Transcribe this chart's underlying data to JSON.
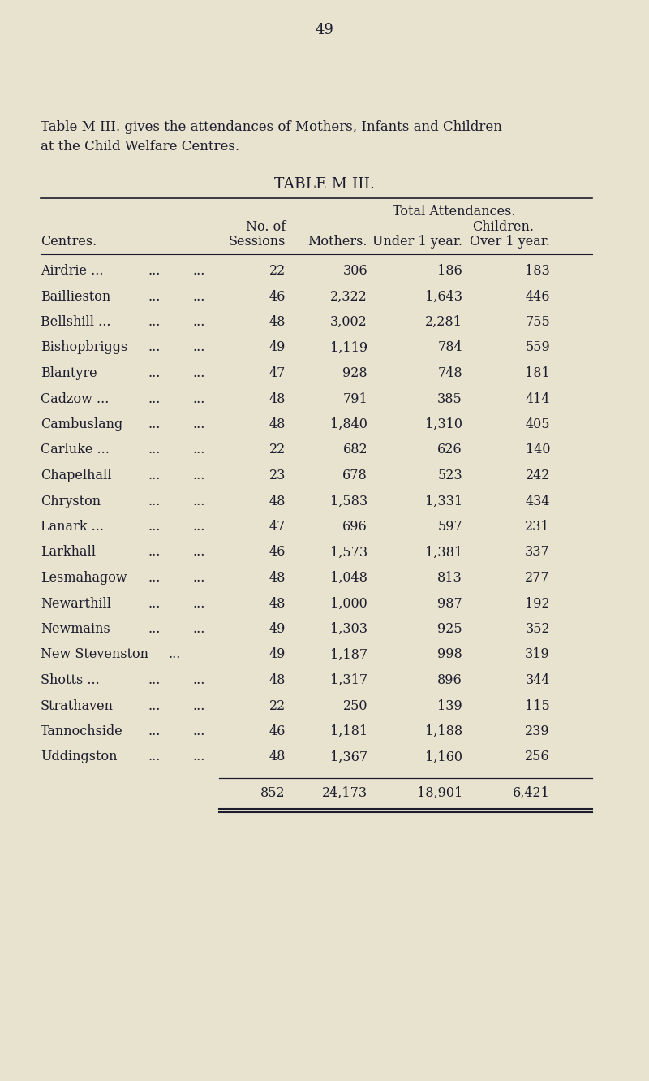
{
  "page_number": "49",
  "intro_text_line1": "Table M III. gives the attendances of Mothers, Infants and Children",
  "intro_text_line2": "at the Child Welfare Centres.",
  "table_title": "TABLE M III.",
  "bg_color": "#e8e3ce",
  "text_color": "#1c1c2e",
  "line_color": "#1c1c2e",
  "rows": [
    [
      "Airdrie ...",
      "...",
      "...",
      "22",
      "306",
      "186",
      "183"
    ],
    [
      "Baillieston",
      "...",
      "...",
      "46",
      "2,322",
      "1,643",
      "446"
    ],
    [
      "Bellshill ...",
      "...",
      "...",
      "48",
      "3,002",
      "2,281",
      "755"
    ],
    [
      "Bishopbriggs",
      "...",
      "...",
      "49",
      "1,119",
      "784",
      "559"
    ],
    [
      "Blantyre",
      "...",
      "...",
      "47",
      "928",
      "748",
      "181"
    ],
    [
      "Cadzow ...",
      "...",
      "...",
      "48",
      "791",
      "385",
      "414"
    ],
    [
      "Cambuslang",
      "...",
      "...",
      "48",
      "1,840",
      "1,310",
      "405"
    ],
    [
      "Carluke ...",
      "...",
      "...",
      "22",
      "682",
      "626",
      "140"
    ],
    [
      "Chapelhall",
      "...",
      "...",
      "23",
      "678",
      "523",
      "242"
    ],
    [
      "Chryston",
      "...",
      "...",
      "48",
      "1,583",
      "1,331",
      "434"
    ],
    [
      "Lanark ...",
      "...",
      "...",
      "47",
      "696",
      "597",
      "231"
    ],
    [
      "Larkhall",
      "...",
      "...",
      "46",
      "1,573",
      "1,381",
      "337"
    ],
    [
      "Lesmahagow",
      "...",
      "...",
      "48",
      "1,048",
      "813",
      "277"
    ],
    [
      "Newarthill",
      "...",
      "...",
      "48",
      "1,000",
      "987",
      "192"
    ],
    [
      "Newmains",
      "...",
      "...",
      "49",
      "1,303",
      "925",
      "352"
    ],
    [
      "New Stevenston",
      "...",
      null,
      "49",
      "1,187",
      "998",
      "319"
    ],
    [
      "Shotts ...",
      "...",
      "...",
      "48",
      "1,317",
      "896",
      "344"
    ],
    [
      "Strathaven",
      "...",
      "...",
      "22",
      "250",
      "139",
      "115"
    ],
    [
      "Tannochside",
      "...",
      "...",
      "46",
      "1,181",
      "1,188",
      "239"
    ],
    [
      "Uddingston",
      "...",
      "...",
      "48",
      "1,367",
      "1,160",
      "256"
    ]
  ],
  "totals": [
    "852",
    "24,173",
    "18,901",
    "6,421"
  ]
}
